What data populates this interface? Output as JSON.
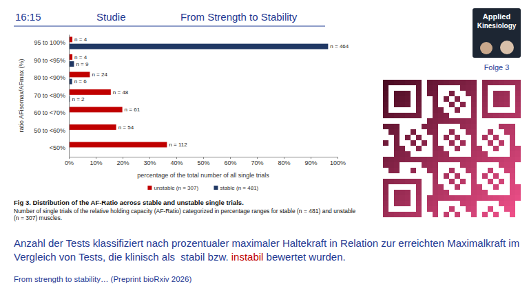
{
  "chart_data": {
    "type": "bar",
    "orientation": "horizontal",
    "title": "Fig 3. Distribution of the AF-Ratio across stable and unstable single trials.",
    "subtitle": "Number of single trials of the relative holding capacity (AF-Ratio) categorized in percentage ranges for stable (n = 481) and unstable (n = 307) muscles.",
    "x_label": "percentage of the total number of all single trials",
    "y_label": "ratio AFisomax/AFmax (%)",
    "categories": [
      "95 to 100%",
      "90 to <95%",
      "80 to <90%",
      "70 to <80%",
      "60 to <70%",
      "50 to <60%",
      "<50%"
    ],
    "series": [
      {
        "name": "unstable (n = 307)",
        "color": "#c00000",
        "values": [
          1.3,
          1.3,
          7.8,
          15.6,
          19.9,
          17.6,
          36.5
        ],
        "value_labels": [
          "n = 4",
          "n = 4",
          "n = 24",
          "n = 48",
          "n = 61",
          "n = 54",
          "n = 112"
        ]
      },
      {
        "name": "stable (n = 481)",
        "color": "#203864",
        "values": [
          96.5,
          1.9,
          1.2,
          0.4,
          null,
          null,
          null
        ],
        "value_labels": [
          "n = 464",
          "n = 9",
          "n = 6",
          "n = 2",
          null,
          null,
          null
        ]
      }
    ],
    "xlim": [
      0,
      100
    ],
    "xticks": [
      {
        "value": 0,
        "label": "0%"
      },
      {
        "value": 10,
        "label": "10%"
      },
      {
        "value": 20,
        "label": "20%"
      },
      {
        "value": 30,
        "label": "30%"
      },
      {
        "value": 40,
        "label": "40%"
      },
      {
        "value": 50,
        "label": "50%"
      },
      {
        "value": 60,
        "label": "60%"
      },
      {
        "value": 70,
        "label": "70%"
      },
      {
        "value": 80,
        "label": "80%"
      },
      {
        "value": 90,
        "label": "90%"
      },
      {
        "value": 100,
        "label": "100%"
      }
    ],
    "grid": false,
    "legend": "bottom",
    "data_labels": true
  },
  "slide": {
    "header": {
      "time": "16:15",
      "label": "Studie",
      "heading": "From Strength to Stability"
    },
    "logo": {
      "lines": [
        "Applied",
        "Kinesiology"
      ],
      "episode": "Folge 3"
    },
    "caption": [
      "Anzahl der Tests klassifiziert nach prozentualer maximaler Haltekraft in Relation zur erreichten Maximalkraft im Vergleich von Tests, die klinisch als  ",
      "stabil",
      " bzw. ",
      "instabil",
      " bewertet wurden."
    ],
    "source": "From strength to stability… (Preprint bioRxiv 2026)"
  }
}
